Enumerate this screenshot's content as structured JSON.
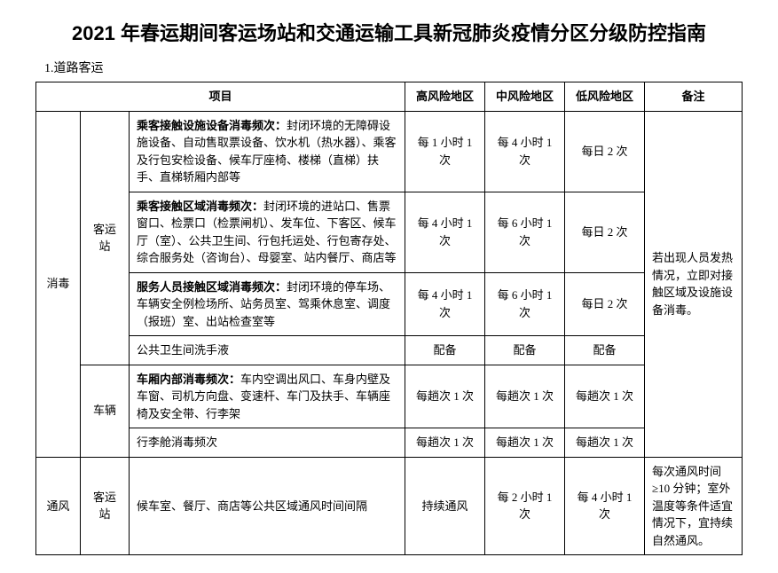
{
  "title": "2021 年春运期间客运场站和交通运输工具新冠肺炎疫情分区分级防控指南",
  "section": "1.道路客运",
  "headers": {
    "item": "项目",
    "high": "高风险地区",
    "mid": "中风险地区",
    "low": "低风险地区",
    "note": "备注"
  },
  "cat_disinfect": "消毒",
  "cat_ventilation": "通风",
  "sub_station": "客运站",
  "sub_vehicle": "车辆",
  "rows": {
    "r1": {
      "label": "乘客接触设施设备消毒频次：",
      "text": "封闭环境的无障碍设施设备、自动售取票设备、饮水机（热水器）、乘客及行包安检设备、候车厅座椅、楼梯（直梯）扶手、直梯轿厢内部等",
      "high": "每 1 小时 1 次",
      "mid": "每 4 小时 1 次",
      "low": "每日 2 次"
    },
    "r2": {
      "label": "乘客接触区域消毒频次：",
      "text": "封闭环境的进站口、售票窗口、检票口（检票闸机）、发车位、下客区、候车厅（室）、公共卫生间、行包托运处、行包寄存处、综合服务处（咨询台）、母婴室、站内餐厅、商店等",
      "high": "每 4 小时 1 次",
      "mid": "每 6 小时 1 次",
      "low": "每日 2 次"
    },
    "r3": {
      "label": "服务人员接触区域消毒频次：",
      "text": "封闭环境的停车场、车辆安全例检场所、站务员室、驾乘休息室、调度（报班）室、出站检查室等",
      "high": "每 4 小时 1 次",
      "mid": "每 6 小时 1 次",
      "low": "每日 2 次"
    },
    "r4": {
      "text": "公共卫生间洗手液",
      "high": "配备",
      "mid": "配备",
      "low": "配备"
    },
    "r5": {
      "label": "车厢内部消毒频次：",
      "text": "车内空调出风口、车身内壁及车窗、司机方向盘、变速杆、车门及扶手、车辆座椅及安全带、行李架",
      "high": "每趟次 1 次",
      "mid": "每趟次 1 次",
      "low": "每趟次 1 次"
    },
    "r6": {
      "text": "行李舱消毒频次",
      "high": "每趟次 1 次",
      "mid": "每趟次 1 次",
      "low": "每趟次 1 次"
    },
    "r7": {
      "text": "候车室、餐厅、商店等公共区域通风时间间隔",
      "high": "持续通风",
      "mid": "每 2 小时 1 次",
      "low": "每 4 小时 1 次"
    }
  },
  "note_disinfect": "若出现人员发热情况，立即对接触区域及设施设备消毒。",
  "note_ventilation": "每次通风时间≥10 分钟；室外温度等条件适宜情况下，宜持续自然通风。"
}
